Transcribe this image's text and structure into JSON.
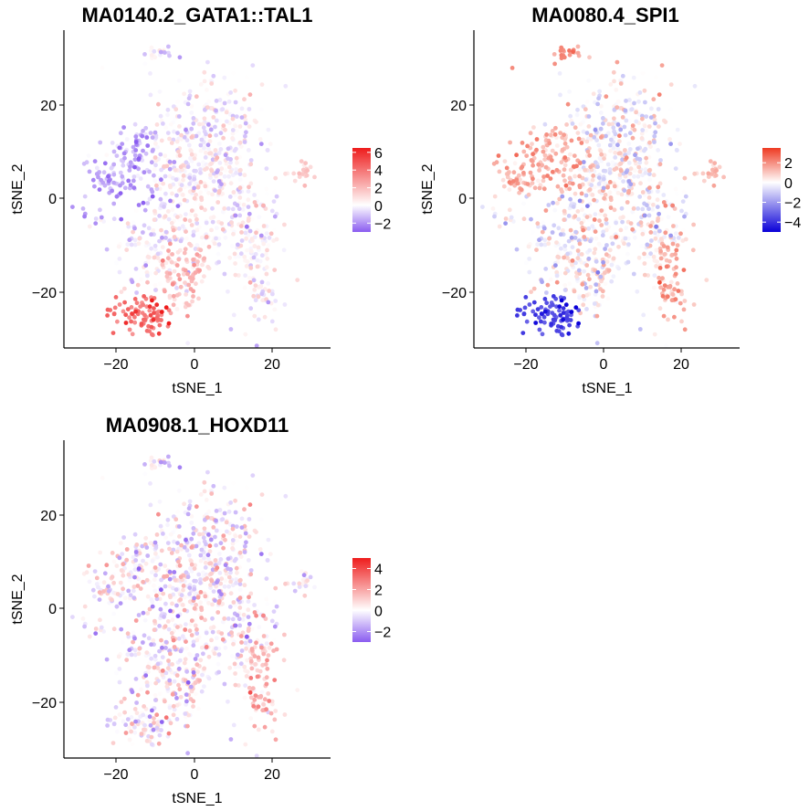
{
  "chart_data": [
    {
      "type": "scatter",
      "title": "MA0140.2_GATA1::TAL1",
      "xlabel": "tSNE_1",
      "ylabel": "tSNE_2",
      "xlim": [
        -33,
        35
      ],
      "ylim": [
        -32,
        35
      ],
      "x_ticks": [
        -20,
        0,
        20
      ],
      "y_ticks": [
        -20,
        0,
        20
      ],
      "x_tick_labels": [
        "−20",
        "0",
        "20"
      ],
      "y_tick_labels": [
        "−20",
        "0",
        "20"
      ],
      "legend": {
        "placement": "right",
        "low_color": "#8a5cf0",
        "mid_color": "#ffffff",
        "high_color": "#ee1c1c",
        "min": -3,
        "max": 6.5,
        "ticks": [
          6,
          4,
          2,
          0,
          -2
        ],
        "tick_labels": [
          "6",
          "4",
          "2",
          "0",
          "−2"
        ]
      },
      "pattern": "gata"
    },
    {
      "type": "scatter",
      "title": "MA0080.4_SPI1",
      "xlabel": "tSNE_1",
      "ylabel": "tSNE_2",
      "xlim": [
        -33,
        35
      ],
      "ylim": [
        -32,
        35
      ],
      "x_ticks": [
        -20,
        0,
        20
      ],
      "y_ticks": [
        -20,
        0,
        20
      ],
      "x_tick_labels": [
        "−20",
        "0",
        "20"
      ],
      "y_tick_labels": [
        "−20",
        "0",
        "20"
      ],
      "legend": {
        "placement": "right",
        "low_color": "#0a00d8",
        "mid_color": "#ffffff",
        "high_color": "#ee3a22",
        "min": -5,
        "max": 3.5,
        "ticks": [
          2,
          0,
          -2,
          -4
        ],
        "tick_labels": [
          "2",
          "0",
          "−2",
          "−4"
        ]
      },
      "pattern": "spi"
    },
    {
      "type": "scatter",
      "title": "MA0908.1_HOXD11",
      "xlabel": "tSNE_1",
      "ylabel": "tSNE_2",
      "xlim": [
        -33,
        35
      ],
      "ylim": [
        -32,
        35
      ],
      "x_ticks": [
        -20,
        0,
        20
      ],
      "y_ticks": [
        -20,
        0,
        20
      ],
      "x_tick_labels": [
        "−20",
        "0",
        "20"
      ],
      "y_tick_labels": [
        "−20",
        "0",
        "20"
      ],
      "legend": {
        "placement": "right",
        "low_color": "#8a5cf0",
        "mid_color": "#ffffff",
        "high_color": "#ee1c1c",
        "min": -3,
        "max": 5,
        "ticks": [
          4,
          2,
          0,
          -2
        ],
        "tick_labels": [
          "4",
          "2",
          "0",
          "−2"
        ]
      },
      "pattern": "hox"
    }
  ],
  "clusters": [
    {
      "cx": -9,
      "cy": 30,
      "sx": 2.0,
      "sy": 1.0,
      "n": 20
    },
    {
      "cx": 0,
      "cy": 5,
      "sx": 6,
      "sy": 10,
      "n": 360
    },
    {
      "cx": 8,
      "cy": 12,
      "sx": 5,
      "sy": 7,
      "n": 150
    },
    {
      "cx": -14,
      "cy": 8,
      "sx": 5,
      "sy": 4,
      "n": 110
    },
    {
      "cx": -20,
      "cy": 4,
      "sx": 3,
      "sy": 2,
      "n": 40
    },
    {
      "cx": -26,
      "cy": -3,
      "sx": 3,
      "sy": 1.5,
      "n": 14
    },
    {
      "cx": 14,
      "cy": -5,
      "sx": 4,
      "sy": 5,
      "n": 110
    },
    {
      "cx": 17,
      "cy": -17,
      "sx": 2.5,
      "sy": 6,
      "n": 90
    },
    {
      "cx": -4,
      "cy": -16,
      "sx": 5,
      "sy": 5,
      "n": 160
    },
    {
      "cx": -13,
      "cy": -25,
      "sx": 4,
      "sy": 2,
      "n": 80
    },
    {
      "cx": -16,
      "cy": -9,
      "sx": 3,
      "sy": 3,
      "n": 40
    },
    {
      "cx": 28,
      "cy": 5,
      "sx": 1.5,
      "sy": 1.5,
      "n": 18
    }
  ]
}
